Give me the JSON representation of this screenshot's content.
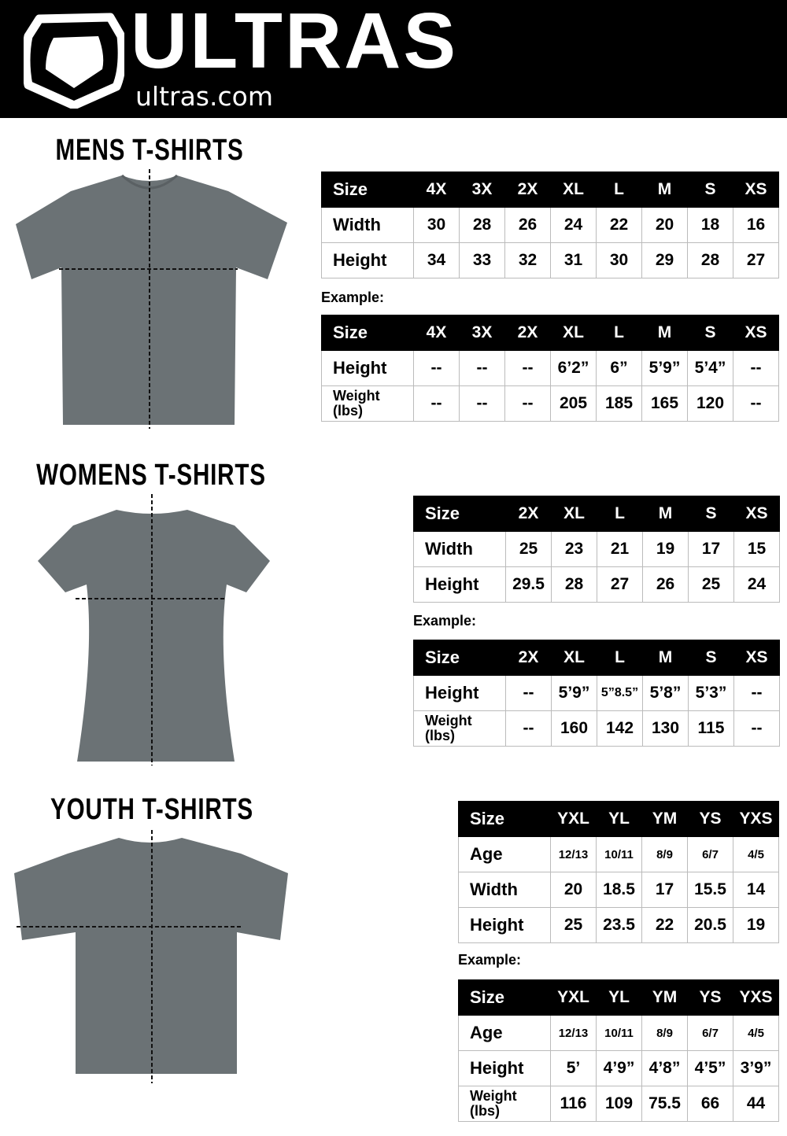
{
  "header": {
    "brand": "ULTRAS",
    "domain": "ultras.com",
    "logo": "shield-logo"
  },
  "sections": [
    {
      "id": "mens",
      "title": "MENS T-SHIRTS",
      "example_label": "Example:",
      "size_table": {
        "header": [
          "Size",
          "4X",
          "3X",
          "2X",
          "XL",
          "L",
          "M",
          "S",
          "XS"
        ],
        "rows": [
          [
            "Width",
            "30",
            "28",
            "26",
            "24",
            "22",
            "20",
            "18",
            "16"
          ],
          [
            "Height",
            "34",
            "33",
            "32",
            "31",
            "30",
            "29",
            "28",
            "27"
          ]
        ]
      },
      "example_table": {
        "header": [
          "Size",
          "4X",
          "3X",
          "2X",
          "XL",
          "L",
          "M",
          "S",
          "XS"
        ],
        "rows": [
          [
            "Height",
            "--",
            "--",
            "--",
            "6’2”",
            "6”",
            "5’9”",
            "5’4”",
            "--"
          ],
          [
            "Weight (lbs)",
            "--",
            "--",
            "--",
            "205",
            "185",
            "165",
            "120",
            "--"
          ]
        ]
      }
    },
    {
      "id": "womens",
      "title": "WOMENS T-SHIRTS",
      "example_label": "Example:",
      "size_table": {
        "header": [
          "Size",
          "2X",
          "XL",
          "L",
          "M",
          "S",
          "XS"
        ],
        "rows": [
          [
            "Width",
            "25",
            "23",
            "21",
            "19",
            "17",
            "15"
          ],
          [
            "Height",
            "29.5",
            "28",
            "27",
            "26",
            "25",
            "24"
          ]
        ]
      },
      "example_table": {
        "header": [
          "Size",
          "2X",
          "XL",
          "L",
          "M",
          "S",
          "XS"
        ],
        "rows": [
          [
            "Height",
            "--",
            "5’9”",
            "5”8.5”",
            "5’8”",
            "5’3”",
            "--"
          ],
          [
            "Weight (lbs)",
            "--",
            "160",
            "142",
            "130",
            "115",
            "--"
          ]
        ]
      }
    },
    {
      "id": "youth",
      "title": "YOUTH T-SHIRTS",
      "example_label": "Example:",
      "size_table": {
        "header": [
          "Size",
          "YXL",
          "YL",
          "YM",
          "YS",
          "YXS"
        ],
        "rows": [
          [
            "Age",
            "12/13",
            "10/11",
            "8/9",
            "6/7",
            "4/5"
          ],
          [
            "Width",
            "20",
            "18.5",
            "17",
            "15.5",
            "14"
          ],
          [
            "Height",
            "25",
            "23.5",
            "22",
            "20.5",
            "19"
          ]
        ]
      },
      "example_table": {
        "header": [
          "Size",
          "YXL",
          "YL",
          "YM",
          "YS",
          "YXS"
        ],
        "rows": [
          [
            "Age",
            "12/13",
            "10/11",
            "8/9",
            "6/7",
            "4/5"
          ],
          [
            "Height",
            "5’",
            "4’9”",
            "4’8”",
            "4’5”",
            "3’9”"
          ],
          [
            "Weight (lbs)",
            "116",
            "109",
            "75.5",
            "66",
            "44"
          ]
        ]
      }
    }
  ],
  "colors": {
    "header_bg": "#000000",
    "shirt": "#6b7275",
    "table_header": "#000000"
  }
}
